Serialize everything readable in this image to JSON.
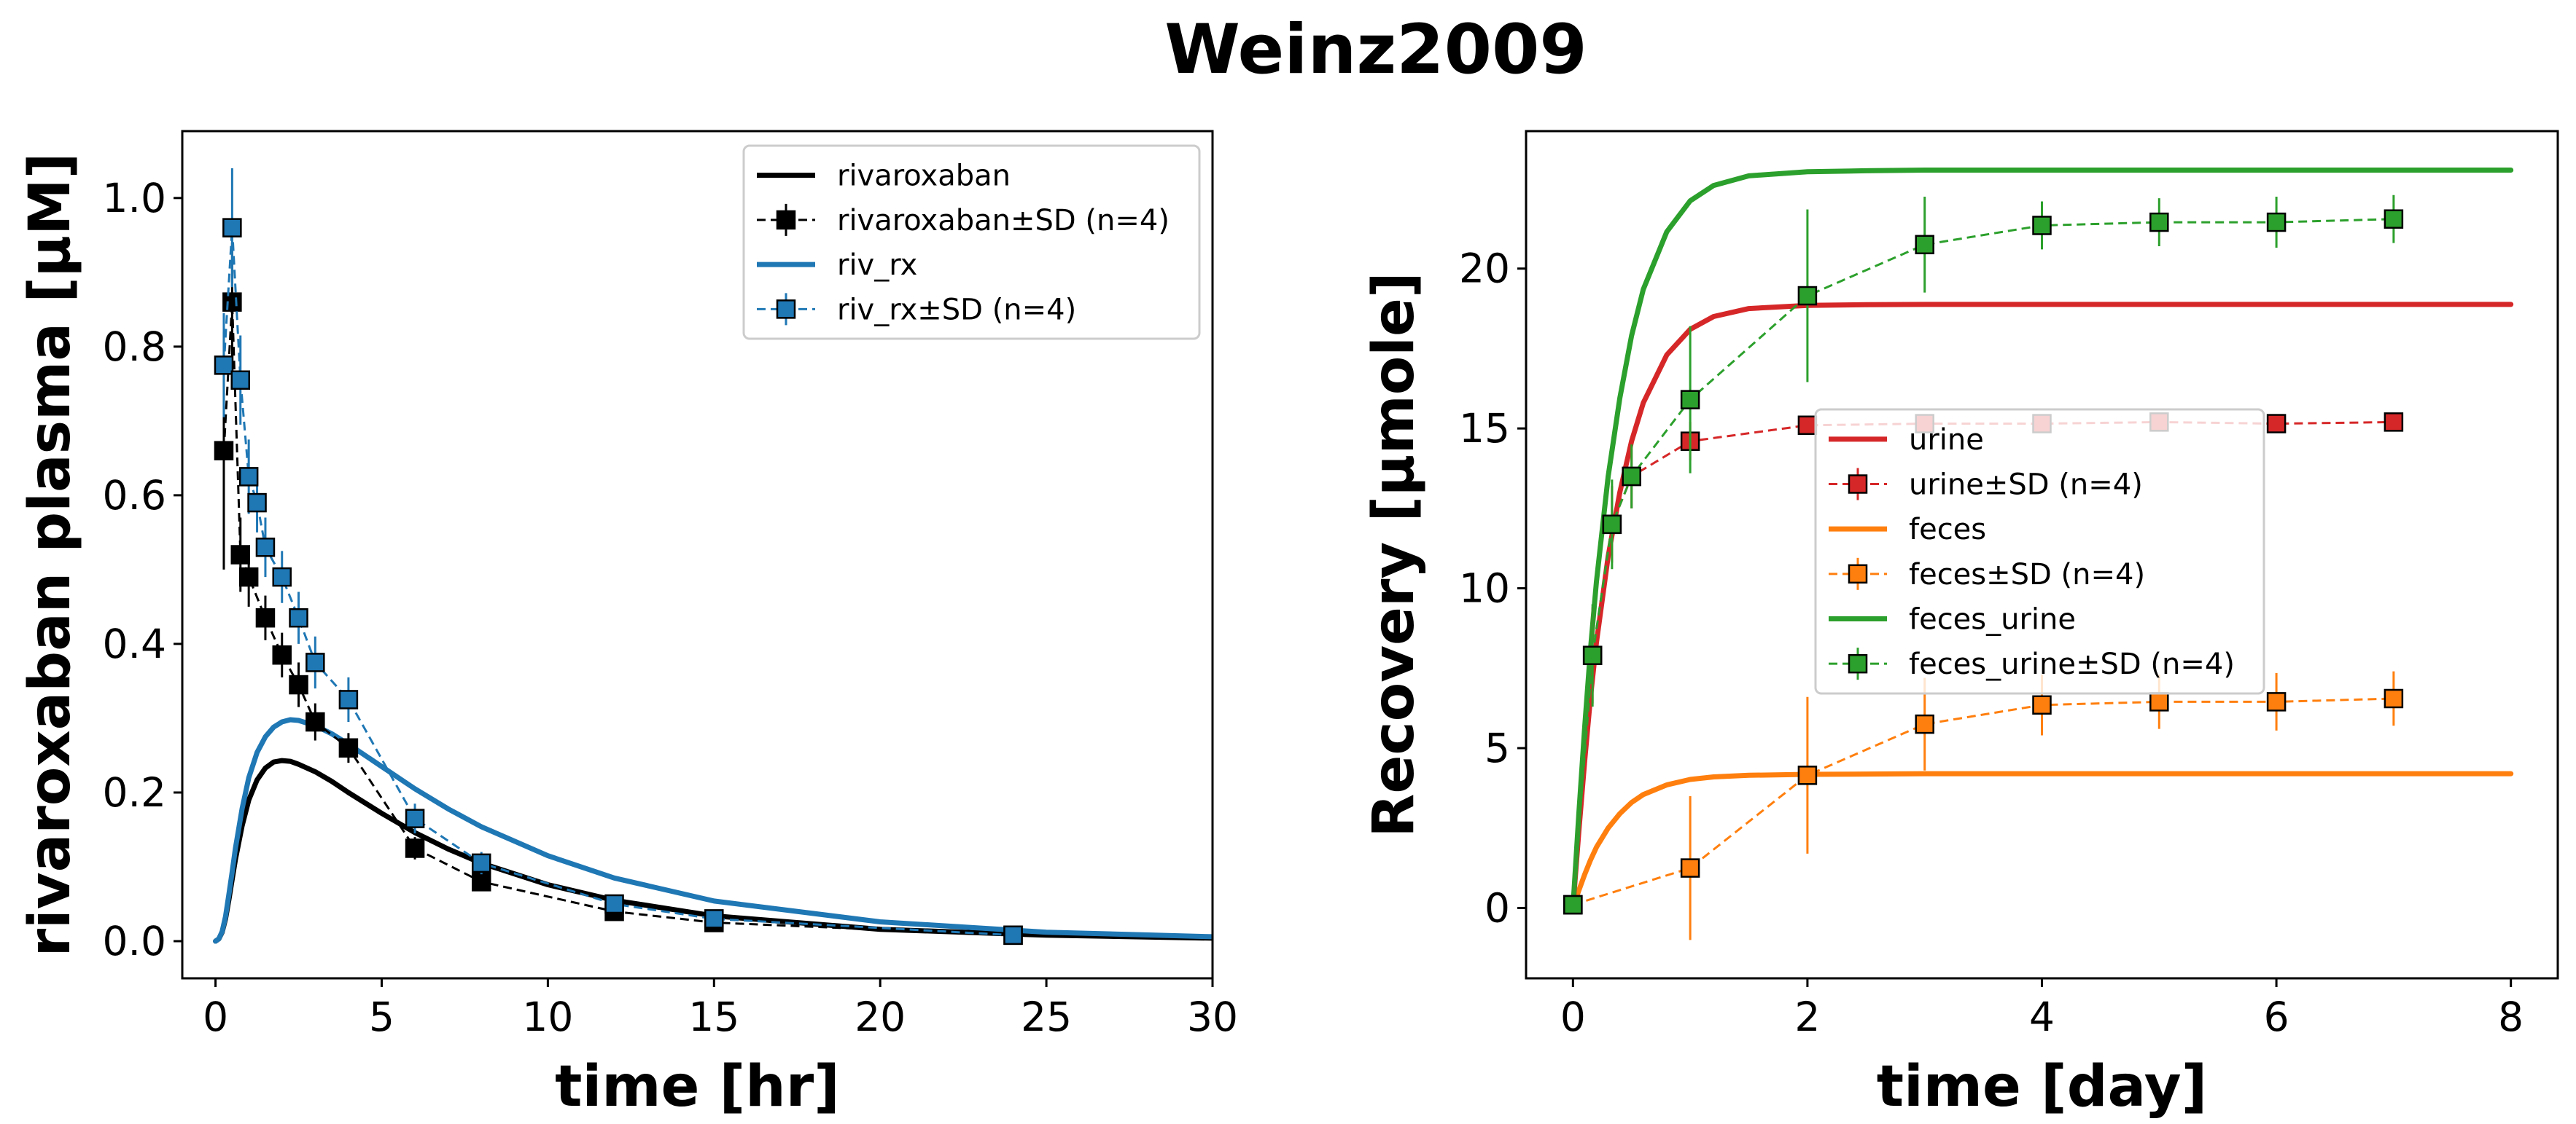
{
  "figure": {
    "title": "Weinz2009"
  },
  "chart_data": [
    {
      "type": "line",
      "xlabel": "time [hr]",
      "ylabel": "rivaroxaban plasma [µM]",
      "xlim": [
        -1,
        30
      ],
      "ylim": [
        -0.05,
        1.09
      ],
      "xticks": [
        0,
        5,
        10,
        15,
        20,
        25,
        30
      ],
      "yticks": [
        0.0,
        0.2,
        0.4,
        0.6,
        0.8,
        1.0
      ],
      "xtick_labels": [
        "0",
        "5",
        "10",
        "15",
        "20",
        "25",
        "30"
      ],
      "ytick_labels": [
        "0.0",
        "0.2",
        "0.4",
        "0.6",
        "0.8",
        "1.0"
      ],
      "legend": {
        "placement": "top-right",
        "entries": [
          {
            "label": "rivaroxaban",
            "kind": "line",
            "color": "#000000"
          },
          {
            "label": "rivaroxaban±SD (n=4)",
            "kind": "marker",
            "color": "#000000"
          },
          {
            "label": "riv_rx",
            "kind": "line",
            "color": "#1f77b4"
          },
          {
            "label": "riv_rx±SD (n=4)",
            "kind": "marker",
            "color": "#1f77b4"
          }
        ]
      },
      "lines": [
        {
          "name": "rivaroxaban",
          "color": "#000000",
          "x": [
            0,
            0.1,
            0.2,
            0.3,
            0.4,
            0.5,
            0.6,
            0.8,
            1,
            1.25,
            1.5,
            1.75,
            2,
            2.25,
            2.5,
            3,
            3.5,
            4,
            5,
            6,
            7,
            8,
            10,
            12,
            15,
            20,
            25,
            30
          ],
          "y": [
            0.0,
            0.003,
            0.012,
            0.03,
            0.055,
            0.083,
            0.11,
            0.155,
            0.19,
            0.217,
            0.233,
            0.241,
            0.243,
            0.242,
            0.238,
            0.228,
            0.215,
            0.2,
            0.172,
            0.146,
            0.124,
            0.105,
            0.076,
            0.055,
            0.034,
            0.016,
            0.008,
            0.004
          ]
        },
        {
          "name": "riv_rx",
          "color": "#1f77b4",
          "x": [
            0,
            0.1,
            0.2,
            0.3,
            0.4,
            0.5,
            0.6,
            0.8,
            1,
            1.25,
            1.5,
            1.75,
            2,
            2.25,
            2.5,
            3,
            3.5,
            4,
            5,
            6,
            7,
            8,
            10,
            12,
            15,
            20,
            25,
            30
          ],
          "y": [
            0.0,
            0.003,
            0.013,
            0.033,
            0.062,
            0.093,
            0.125,
            0.178,
            0.22,
            0.254,
            0.275,
            0.288,
            0.295,
            0.298,
            0.297,
            0.29,
            0.279,
            0.265,
            0.235,
            0.205,
            0.178,
            0.154,
            0.115,
            0.085,
            0.054,
            0.026,
            0.012,
            0.006
          ]
        }
      ],
      "scatter": [
        {
          "name": "rivaroxaban±SD (n=4)",
          "color": "#000000",
          "x": [
            0.25,
            0.5,
            0.75,
            1.0,
            1.5,
            2.0,
            2.5,
            3.0,
            4.0,
            6.0,
            8.0,
            12.0,
            15.0,
            24.0
          ],
          "y": [
            0.66,
            0.86,
            0.52,
            0.49,
            0.435,
            0.385,
            0.345,
            0.295,
            0.26,
            0.125,
            0.08,
            0.04,
            0.025,
            0.008
          ],
          "yerr": [
            0.16,
            0.08,
            0.05,
            0.04,
            0.03,
            0.03,
            0.03,
            0.025,
            0.02,
            0.015,
            0.01,
            0.008,
            0.006,
            0.003
          ]
        },
        {
          "name": "riv_rx±SD (n=4)",
          "color": "#1f77b4",
          "x": [
            0.25,
            0.5,
            0.75,
            1.0,
            1.25,
            1.5,
            2.0,
            2.5,
            3.0,
            4.0,
            6.0,
            8.0,
            12.0,
            15.0,
            24.0
          ],
          "y": [
            0.775,
            0.96,
            0.755,
            0.625,
            0.59,
            0.53,
            0.49,
            0.435,
            0.375,
            0.325,
            0.165,
            0.105,
            0.05,
            0.03,
            0.008
          ],
          "yerr": [
            0.07,
            0.08,
            0.06,
            0.05,
            0.04,
            0.04,
            0.035,
            0.035,
            0.035,
            0.03,
            0.02,
            0.015,
            0.008,
            0.006,
            0.003
          ]
        }
      ]
    },
    {
      "type": "line",
      "xlabel": "time [day]",
      "ylabel": "Recovery [µmole]",
      "xlim": [
        -0.4,
        8.4
      ],
      "ylim": [
        -2.2,
        24.3
      ],
      "xticks": [
        0,
        2,
        4,
        6,
        8
      ],
      "yticks": [
        0,
        5,
        10,
        15,
        20
      ],
      "xtick_labels": [
        "0",
        "2",
        "4",
        "6",
        "8"
      ],
      "ytick_labels": [
        "0",
        "5",
        "10",
        "15",
        "20"
      ],
      "legend": {
        "placement": "center-right",
        "entries": [
          {
            "label": "urine",
            "kind": "line",
            "color": "#d62728"
          },
          {
            "label": "urine±SD (n=4)",
            "kind": "marker",
            "color": "#d62728"
          },
          {
            "label": "feces",
            "kind": "line",
            "color": "#ff7f0e"
          },
          {
            "label": "feces±SD (n=4)",
            "kind": "marker",
            "color": "#ff7f0e"
          },
          {
            "label": "feces_urine",
            "kind": "line",
            "color": "#2ca02c"
          },
          {
            "label": "feces_urine±SD (n=4)",
            "kind": "marker",
            "color": "#2ca02c"
          }
        ]
      },
      "lines": [
        {
          "name": "feces",
          "color": "#ff7f0e",
          "x": [
            0,
            0.05,
            0.1,
            0.15,
            0.2,
            0.3,
            0.4,
            0.5,
            0.6,
            0.8,
            1.0,
            1.2,
            1.5,
            2,
            2.5,
            3,
            4,
            5,
            6,
            7,
            8
          ],
          "y": [
            0.0,
            0.55,
            1.05,
            1.5,
            1.9,
            2.5,
            2.95,
            3.3,
            3.55,
            3.85,
            4.02,
            4.1,
            4.15,
            4.18,
            4.19,
            4.2,
            4.2,
            4.2,
            4.2,
            4.2,
            4.2
          ]
        },
        {
          "name": "urine",
          "color": "#d62728",
          "x": [
            0,
            0.05,
            0.1,
            0.15,
            0.2,
            0.3,
            0.4,
            0.5,
            0.6,
            0.8,
            1.0,
            1.2,
            1.5,
            2,
            2.5,
            3,
            4,
            5,
            6,
            7,
            8
          ],
          "y": [
            0.0,
            2.4,
            4.6,
            6.6,
            8.3,
            11.0,
            13.0,
            14.6,
            15.8,
            17.3,
            18.1,
            18.5,
            18.75,
            18.85,
            18.87,
            18.88,
            18.88,
            18.88,
            18.88,
            18.88,
            18.88
          ]
        },
        {
          "name": "feces_urine",
          "color": "#2ca02c",
          "x": [
            0,
            0.05,
            0.1,
            0.15,
            0.2,
            0.3,
            0.4,
            0.5,
            0.6,
            0.8,
            1.0,
            1.2,
            1.5,
            2,
            2.5,
            3,
            4,
            5,
            6,
            7,
            8
          ],
          "y": [
            0.0,
            2.95,
            5.65,
            8.1,
            10.2,
            13.5,
            15.95,
            17.9,
            19.35,
            21.15,
            22.12,
            22.6,
            22.9,
            23.03,
            23.06,
            23.08,
            23.08,
            23.08,
            23.08,
            23.08,
            23.08
          ]
        }
      ],
      "scatter": [
        {
          "name": "urine±SD (n=4)",
          "color": "#d62728",
          "x": [
            0.0,
            0.167,
            0.333,
            0.5,
            1.0,
            2.0,
            3.0,
            4.0,
            5.0,
            6.0,
            7.0
          ],
          "y": [
            0.1,
            7.9,
            12.0,
            13.5,
            14.6,
            15.1,
            15.15,
            15.15,
            15.2,
            15.15,
            15.2
          ],
          "yerr": [
            0.05,
            1.5,
            1.2,
            1.0,
            0.6,
            0.3,
            0.25,
            0.25,
            0.25,
            0.2,
            0.2
          ]
        },
        {
          "name": "feces±SD (n=4)",
          "color": "#ff7f0e",
          "x": [
            0.0,
            1.0,
            2.0,
            3.0,
            4.0,
            5.0,
            6.0,
            7.0
          ],
          "y": [
            0.1,
            1.25,
            4.15,
            5.75,
            6.35,
            6.45,
            6.45,
            6.55
          ],
          "yerr": [
            0.05,
            2.25,
            2.45,
            1.45,
            0.95,
            0.85,
            0.9,
            0.85
          ]
        },
        {
          "name": "feces_urine±SD (n=4)",
          "color": "#2ca02c",
          "x": [
            0.0,
            0.167,
            0.333,
            0.5,
            1.0,
            2.0,
            3.0,
            4.0,
            5.0,
            6.0,
            7.0
          ],
          "y": [
            0.1,
            7.9,
            12.0,
            13.5,
            15.9,
            19.15,
            20.75,
            21.35,
            21.45,
            21.45,
            21.55
          ],
          "yerr": [
            0.05,
            1.6,
            1.4,
            1.0,
            2.3,
            2.7,
            1.5,
            0.75,
            0.75,
            0.8,
            0.75
          ]
        }
      ]
    }
  ]
}
